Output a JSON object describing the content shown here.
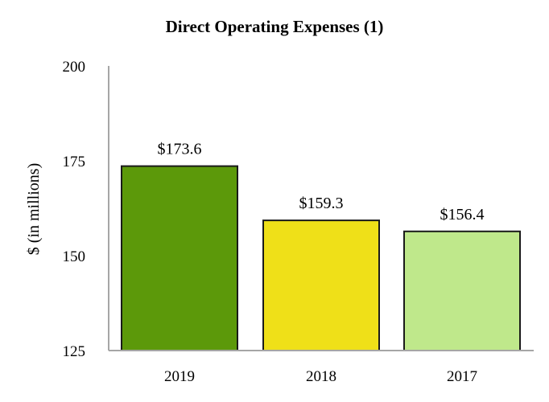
{
  "chart_data": {
    "type": "bar",
    "title": "Direct Operating Expenses (1)",
    "xlabel": "",
    "ylabel": "$ (in millions)",
    "ylim": [
      125,
      200
    ],
    "yticks": [
      "125",
      "150",
      "175",
      "200"
    ],
    "categories": [
      "2019",
      "2018",
      "2017"
    ],
    "values": [
      173.6,
      159.3,
      156.4
    ],
    "data_labels": [
      "$173.6",
      "$159.3",
      "$156.4"
    ],
    "colors": [
      "#5c990a",
      "#efe018",
      "#bfe88b"
    ],
    "grid": false,
    "legend": "none"
  }
}
